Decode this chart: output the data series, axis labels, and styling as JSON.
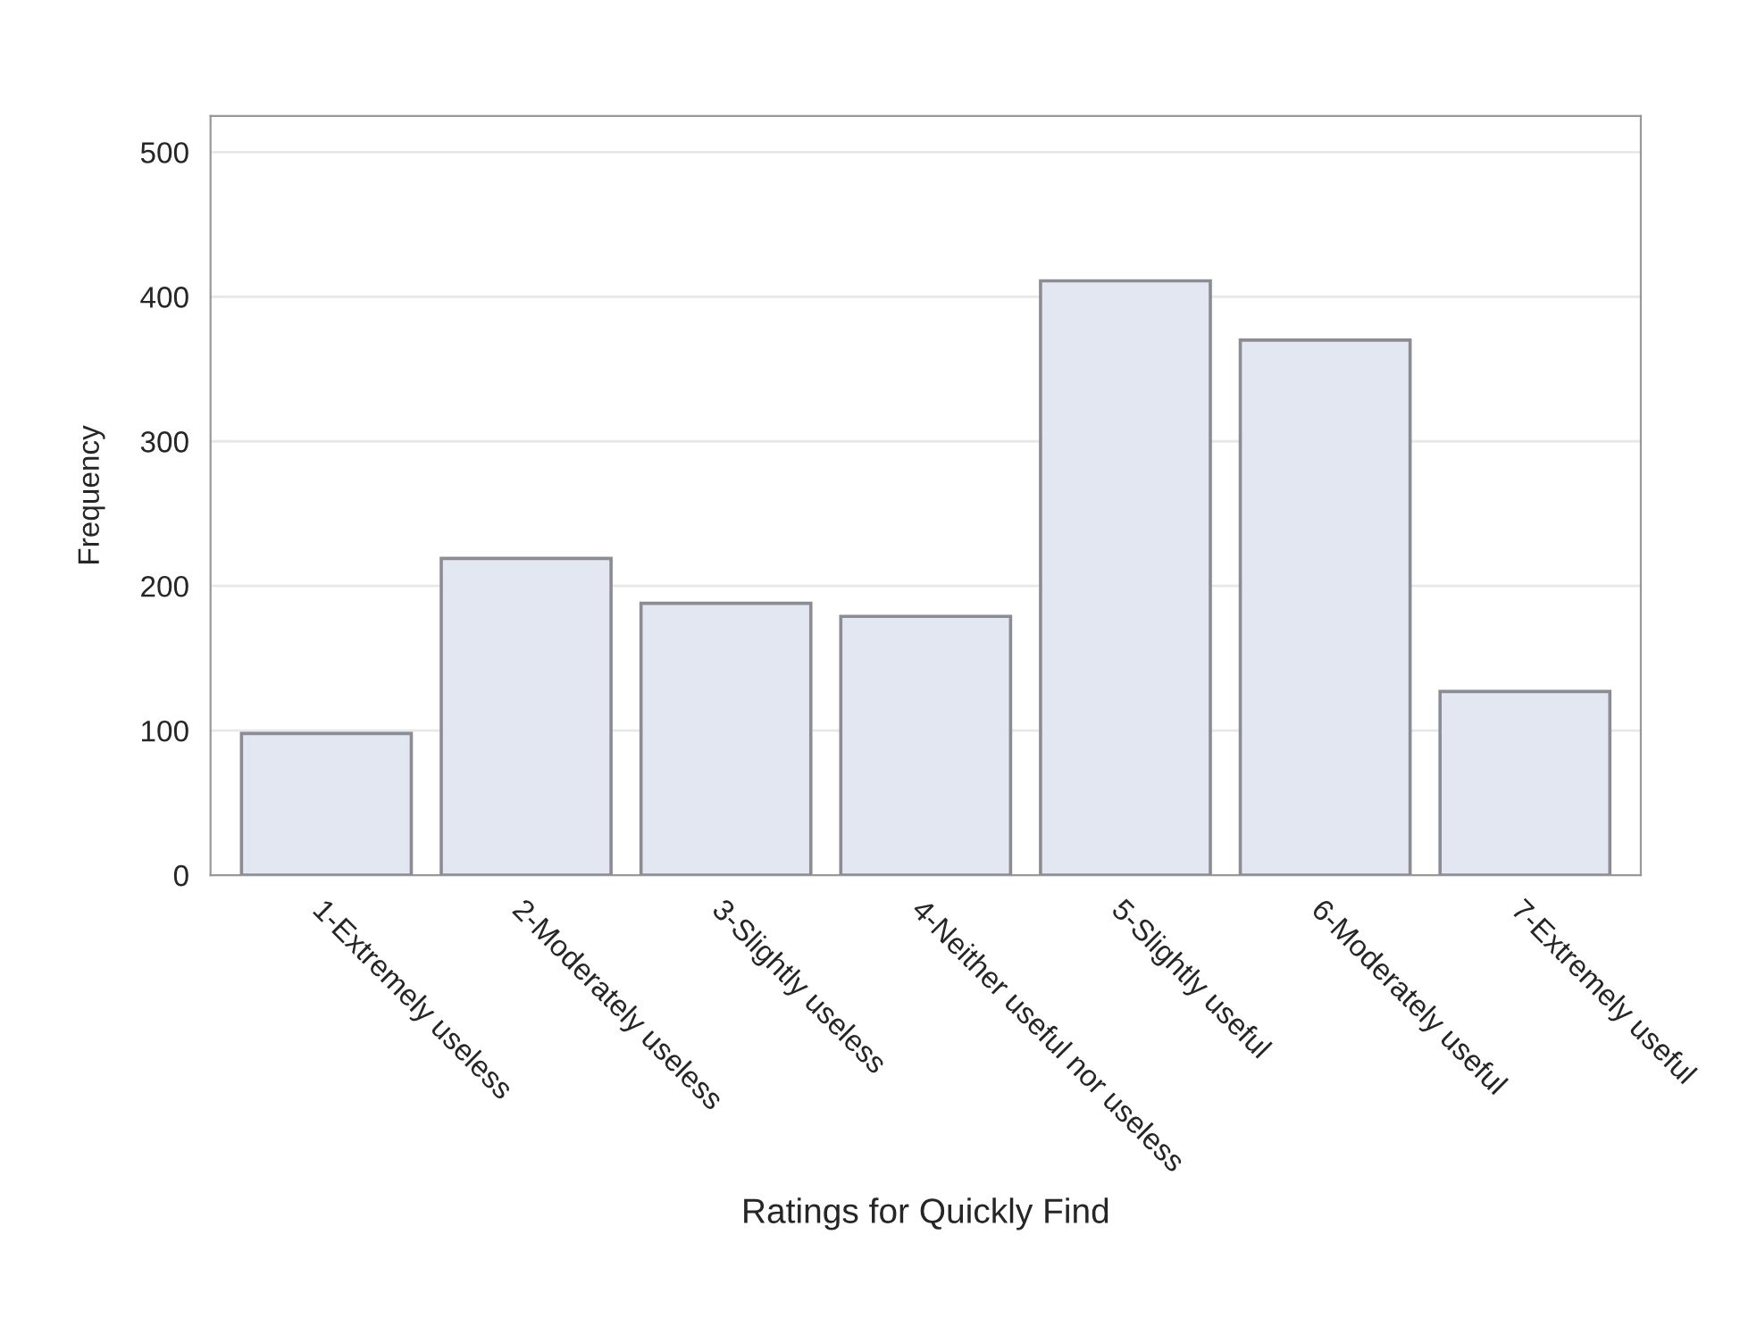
{
  "chart_data": {
    "type": "bar",
    "xlabel": "Ratings for Quickly Find",
    "ylabel": "Frequency",
    "categories": [
      "1-Extremely useless",
      "2-Moderately useless",
      "3-Slightly useless",
      "4-Neither useful nor useless",
      "5-Slightly useful",
      "6-Moderately useful",
      "7-Extremely useful"
    ],
    "values": [
      98,
      219,
      188,
      179,
      411,
      370,
      127
    ],
    "color": "#e3e7f1",
    "ylim": [
      0,
      525
    ],
    "yticks": [
      0,
      100,
      200,
      300,
      400,
      500
    ],
    "grid": "y"
  }
}
